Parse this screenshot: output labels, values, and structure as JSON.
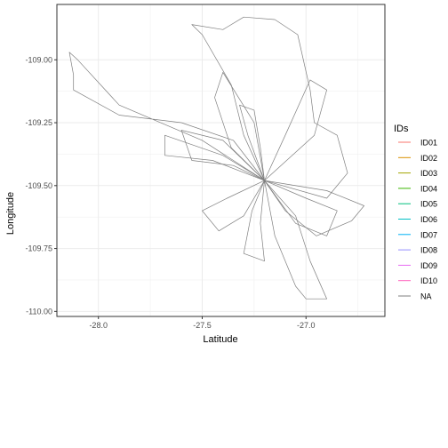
{
  "chart_data": {
    "type": "line",
    "title": "",
    "xlabel": "Latitude",
    "ylabel": "Longitude",
    "xlim": [
      -28.2,
      -26.62
    ],
    "ylim": [
      -110.02,
      -108.78
    ],
    "x_ticks": [
      -28.0,
      -27.5,
      -27.0
    ],
    "x_tick_labels": [
      "-28.0",
      "-27.5",
      "-27.0"
    ],
    "y_ticks": [
      -109.0,
      -109.25,
      -109.5,
      -109.75,
      -110.0
    ],
    "y_tick_labels": [
      "-109.00",
      "-109.25",
      "-109.50",
      "-109.75",
      "-110.00"
    ],
    "grid": true,
    "legend": {
      "title": "IDs",
      "placement": "right",
      "entries": [
        {
          "label": "ID01",
          "color": "#F8766D"
        },
        {
          "label": "ID02",
          "color": "#D89000"
        },
        {
          "label": "ID03",
          "color": "#A3A500"
        },
        {
          "label": "ID04",
          "color": "#39B600"
        },
        {
          "label": "ID05",
          "color": "#00BF7D"
        },
        {
          "label": "ID06",
          "color": "#00BFC4"
        },
        {
          "label": "ID07",
          "color": "#00B0F6"
        },
        {
          "label": "ID08",
          "color": "#9590FF"
        },
        {
          "label": "ID09",
          "color": "#E76BF3"
        },
        {
          "label": "ID10",
          "color": "#FF62BC"
        },
        {
          "label": "NA",
          "color": "#7F7F7F"
        }
      ]
    },
    "hub": {
      "x": -27.2,
      "y": -109.48
    },
    "series": [
      {
        "name": "NA",
        "values": [
          [
            -27.2,
            -109.48
          ],
          [
            -27.3,
            -109.3
          ],
          [
            -27.36,
            -109.1
          ],
          [
            -27.5,
            -108.9
          ],
          [
            -27.55,
            -108.86
          ],
          [
            -27.4,
            -108.88
          ],
          [
            -27.3,
            -108.83
          ],
          [
            -27.15,
            -108.84
          ],
          [
            -27.04,
            -108.9
          ],
          [
            -26.98,
            -109.12
          ],
          [
            -26.96,
            -109.25
          ],
          [
            -26.85,
            -109.3
          ],
          [
            -26.8,
            -109.45
          ],
          [
            -26.9,
            -109.55
          ],
          [
            -27.2,
            -109.48
          ]
        ]
      },
      {
        "name": "NA",
        "values": [
          [
            -27.2,
            -109.48
          ],
          [
            -27.5,
            -109.32
          ],
          [
            -27.9,
            -109.18
          ],
          [
            -28.1,
            -109.0
          ],
          [
            -28.14,
            -108.97
          ],
          [
            -28.12,
            -109.06
          ],
          [
            -28.12,
            -109.12
          ],
          [
            -27.9,
            -109.22
          ],
          [
            -27.6,
            -109.25
          ],
          [
            -27.35,
            -109.32
          ],
          [
            -27.2,
            -109.48
          ]
        ]
      },
      {
        "name": "NA",
        "values": [
          [
            -27.2,
            -109.48
          ],
          [
            -27.4,
            -109.38
          ],
          [
            -27.68,
            -109.3
          ],
          [
            -27.68,
            -109.38
          ],
          [
            -27.45,
            -109.4
          ],
          [
            -27.2,
            -109.48
          ]
        ]
      },
      {
        "name": "NA",
        "values": [
          [
            -27.2,
            -109.48
          ],
          [
            -27.25,
            -109.25
          ],
          [
            -27.4,
            -109.05
          ],
          [
            -27.44,
            -109.15
          ],
          [
            -27.36,
            -109.35
          ],
          [
            -27.2,
            -109.48
          ]
        ]
      },
      {
        "name": "NA",
        "values": [
          [
            -27.2,
            -109.48
          ],
          [
            -27.38,
            -109.55
          ],
          [
            -27.5,
            -109.6
          ],
          [
            -27.42,
            -109.68
          ],
          [
            -27.3,
            -109.62
          ],
          [
            -27.2,
            -109.48
          ]
        ]
      },
      {
        "name": "NA",
        "values": [
          [
            -27.2,
            -109.48
          ],
          [
            -27.1,
            -109.6
          ],
          [
            -26.95,
            -109.7
          ],
          [
            -26.78,
            -109.64
          ],
          [
            -26.72,
            -109.58
          ],
          [
            -26.9,
            -109.52
          ],
          [
            -27.2,
            -109.48
          ]
        ]
      },
      {
        "name": "NA",
        "values": [
          [
            -27.2,
            -109.48
          ],
          [
            -27.15,
            -109.7
          ],
          [
            -27.05,
            -109.9
          ],
          [
            -27.0,
            -109.95
          ],
          [
            -26.9,
            -109.95
          ],
          [
            -26.98,
            -109.8
          ],
          [
            -27.05,
            -109.62
          ],
          [
            -27.2,
            -109.48
          ]
        ]
      },
      {
        "name": "NA",
        "values": [
          [
            -27.2,
            -109.48
          ],
          [
            -27.22,
            -109.65
          ],
          [
            -27.2,
            -109.8
          ],
          [
            -27.3,
            -109.77
          ],
          [
            -27.26,
            -109.6
          ],
          [
            -27.2,
            -109.48
          ]
        ]
      },
      {
        "name": "NA",
        "values": [
          [
            -27.2,
            -109.48
          ],
          [
            -27.1,
            -109.3
          ],
          [
            -26.98,
            -109.08
          ],
          [
            -26.9,
            -109.12
          ],
          [
            -26.96,
            -109.3
          ],
          [
            -27.2,
            -109.48
          ]
        ]
      },
      {
        "name": "NA",
        "values": [
          [
            -27.2,
            -109.48
          ],
          [
            -27.28,
            -109.3
          ],
          [
            -27.32,
            -109.18
          ],
          [
            -27.25,
            -109.2
          ],
          [
            -27.22,
            -109.35
          ],
          [
            -27.2,
            -109.48
          ]
        ]
      },
      {
        "name": "NA",
        "values": [
          [
            -27.2,
            -109.48
          ],
          [
            -27.35,
            -109.42
          ],
          [
            -27.55,
            -109.4
          ],
          [
            -27.6,
            -109.28
          ],
          [
            -27.4,
            -109.32
          ],
          [
            -27.2,
            -109.48
          ]
        ]
      },
      {
        "name": "NA",
        "values": [
          [
            -27.2,
            -109.48
          ],
          [
            -27.0,
            -109.55
          ],
          [
            -26.85,
            -109.6
          ],
          [
            -26.9,
            -109.7
          ],
          [
            -27.05,
            -109.65
          ],
          [
            -27.2,
            -109.48
          ]
        ]
      }
    ]
  }
}
